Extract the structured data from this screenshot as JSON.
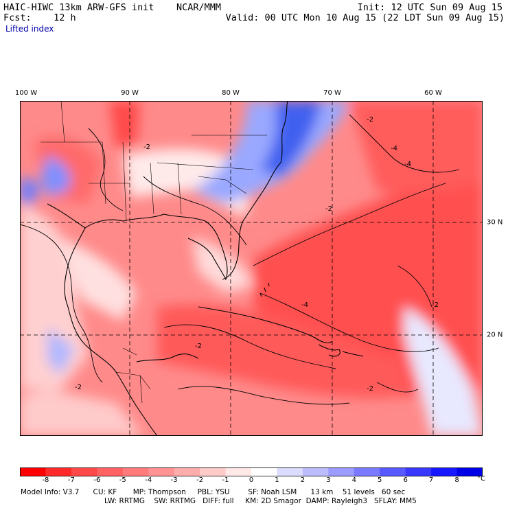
{
  "header": {
    "left_line1": "HAIC-HIWC 13km ARW-GFS init    NCAR/MMM",
    "left_line2": "Fcst:    12 h",
    "field": "Lifted index",
    "right_line1": "Init: 12 UTC Sun 09 Aug 15",
    "right_line2": "Valid: 00 UTC Mon 10 Aug 15 (22 LDT Sun 09 Aug 15)"
  },
  "map": {
    "lon_labels": [
      "100 W",
      "90 W",
      "80 W",
      "70 W",
      "60 W"
    ],
    "lat_labels": [
      "30 N",
      "20 N"
    ],
    "contour_labels": [
      "-2",
      "-4",
      "-4",
      "-2",
      "-2",
      "-2",
      "-4",
      "-2",
      "-2",
      "-2"
    ]
  },
  "colorbar": {
    "ticks": [
      "-8",
      "-7",
      "-6",
      "-5",
      "-4",
      "-3",
      "-2",
      "-1",
      "0",
      "1",
      "2",
      "3",
      "4",
      "5",
      "6",
      "7",
      "8"
    ],
    "unit": "°C",
    "colors": [
      "#ff0000",
      "#ff2a2a",
      "#ff4848",
      "#ff6262",
      "#ff7a7a",
      "#ff9292",
      "#ffacac",
      "#ffcaca",
      "#ffe8e8",
      "#ffffff",
      "#dcdcff",
      "#bcbcff",
      "#9c9cff",
      "#7a7aff",
      "#5858ff",
      "#3838ff",
      "#1818ff",
      "#0000e8"
    ]
  },
  "model_info": {
    "line1": "Model Info: V3.7      CU: KF       MP: Thompson     PBL: YSU        SF: Noah LSM      13 km    51 levels   60 sec",
    "line2": "LW: RRTMG    SW: RRTMG   DIFF: full     KM: 2D Smagor  DAMP: Rayleigh3   SFLAY: MM5"
  }
}
